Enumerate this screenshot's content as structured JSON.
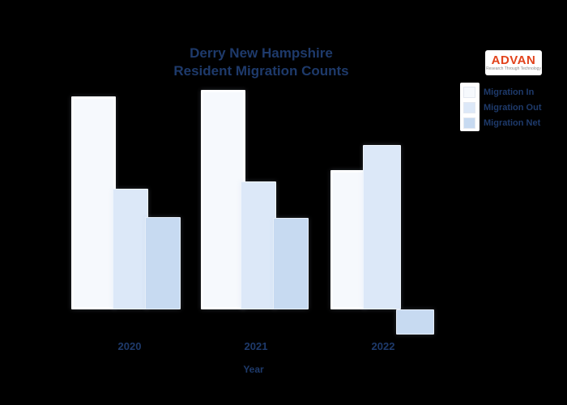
{
  "title": {
    "line1": "Derry New Hampshire",
    "line2": "Resident Migration Counts"
  },
  "logo": {
    "name": "ADVAN",
    "tagline": "Research Through Technology",
    "accent_color": "#e2421b",
    "tagline_color": "#8a8a8a"
  },
  "legend": {
    "position": "top-right",
    "items": [
      {
        "label": "Migration In",
        "color": "#f6f9fd"
      },
      {
        "label": "Migration Out",
        "color": "#dce8f8"
      },
      {
        "label": "Migration Net",
        "color": "#c7daf1"
      }
    ]
  },
  "x_axis": {
    "label": "Year",
    "ticks": [
      "2020",
      "2021",
      "2022"
    ]
  },
  "chart_data": {
    "type": "bar",
    "title": "Derry New Hampshire Resident Migration Counts",
    "categories": [
      "2020",
      "2021",
      "2022"
    ],
    "series": [
      {
        "name": "Migration In",
        "values": [
          2630,
          2710,
          1720
        ]
      },
      {
        "name": "Migration Out",
        "values": [
          1490,
          1580,
          2030
        ]
      },
      {
        "name": "Migration Net",
        "values": [
          1140,
          1130,
          -310
        ]
      }
    ],
    "xlabel": "Year",
    "ylabel": "",
    "y_axis_labels_visible": false,
    "values_estimated_from_pixels": true,
    "ylim": [
      -400,
      2900
    ],
    "grid": false,
    "legend_position": "top-right",
    "background": "#000000"
  },
  "colors": {
    "background": "#000000",
    "text": "#1e3a6b"
  }
}
